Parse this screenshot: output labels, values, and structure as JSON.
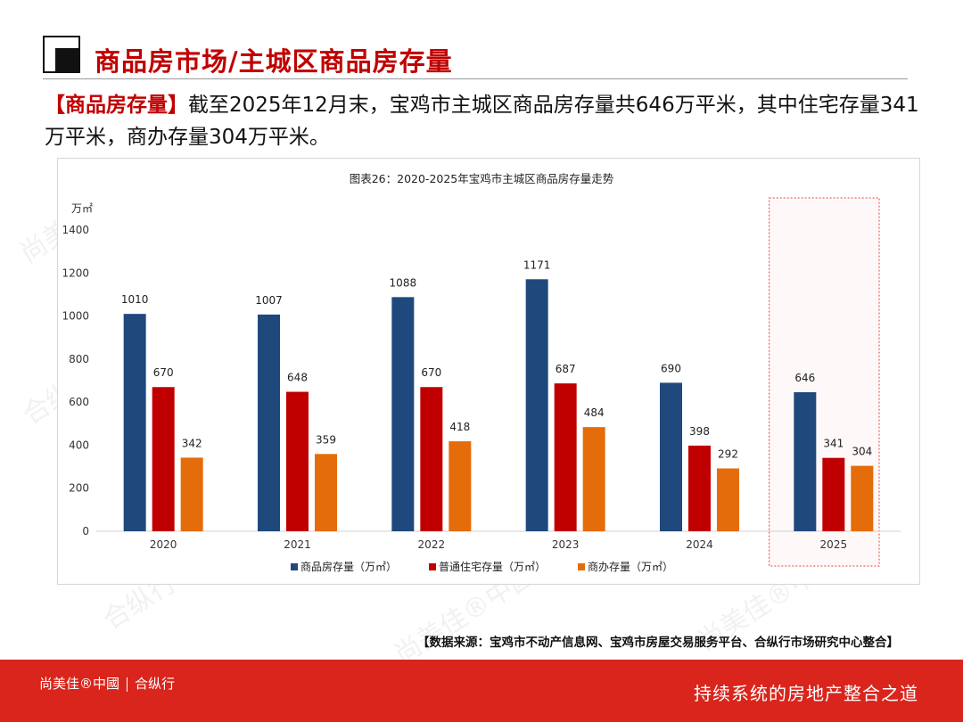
{
  "header": {
    "title": "商品房市场/主城区商品房存量"
  },
  "summary": {
    "tag": "【商品房存量】",
    "text": "截至2025年12月末，宝鸡市主城区商品房存量共646万平米，其中住宅存量341万平米，商办存量304万平米。"
  },
  "chart_data": {
    "type": "bar",
    "title": "图表26：2020-2025年宝鸡市主城区商品房存量走势",
    "ylabel": "万㎡",
    "ylim": [
      0,
      1400
    ],
    "yticks": [
      0,
      200,
      400,
      600,
      800,
      1000,
      1200,
      1400
    ],
    "categories": [
      "2020",
      "2021",
      "2022",
      "2023",
      "2024",
      "2025"
    ],
    "series": [
      {
        "name": "商品房存量（万㎡）",
        "values": [
          1010,
          1007,
          1088,
          1171,
          690,
          646
        ]
      },
      {
        "name": "普通住宅存量（万㎡）",
        "values": [
          670,
          648,
          670,
          687,
          398,
          341
        ]
      },
      {
        "name": "商办存量（万㎡）",
        "values": [
          342,
          359,
          418,
          484,
          292,
          304
        ]
      }
    ],
    "highlight_category": "2025",
    "legend_position": "bottom",
    "grid": false
  },
  "colors": {
    "series": [
      "#1f497d",
      "#c00000",
      "#e46c0a"
    ],
    "accent": "#d9251c",
    "highlight": "#e8413d"
  },
  "source": "【数据来源：宝鸡市不动产信息网、宝鸡市房屋交易服务平台、合纵行市场研究中心整合】",
  "footer": {
    "brand_left": "尚美佳®中國",
    "brand_right": "合纵行",
    "slogan": "持续系统的房地产整合之道"
  },
  "watermarks": [
    "尚美佳®中國",
    "合纵行"
  ]
}
